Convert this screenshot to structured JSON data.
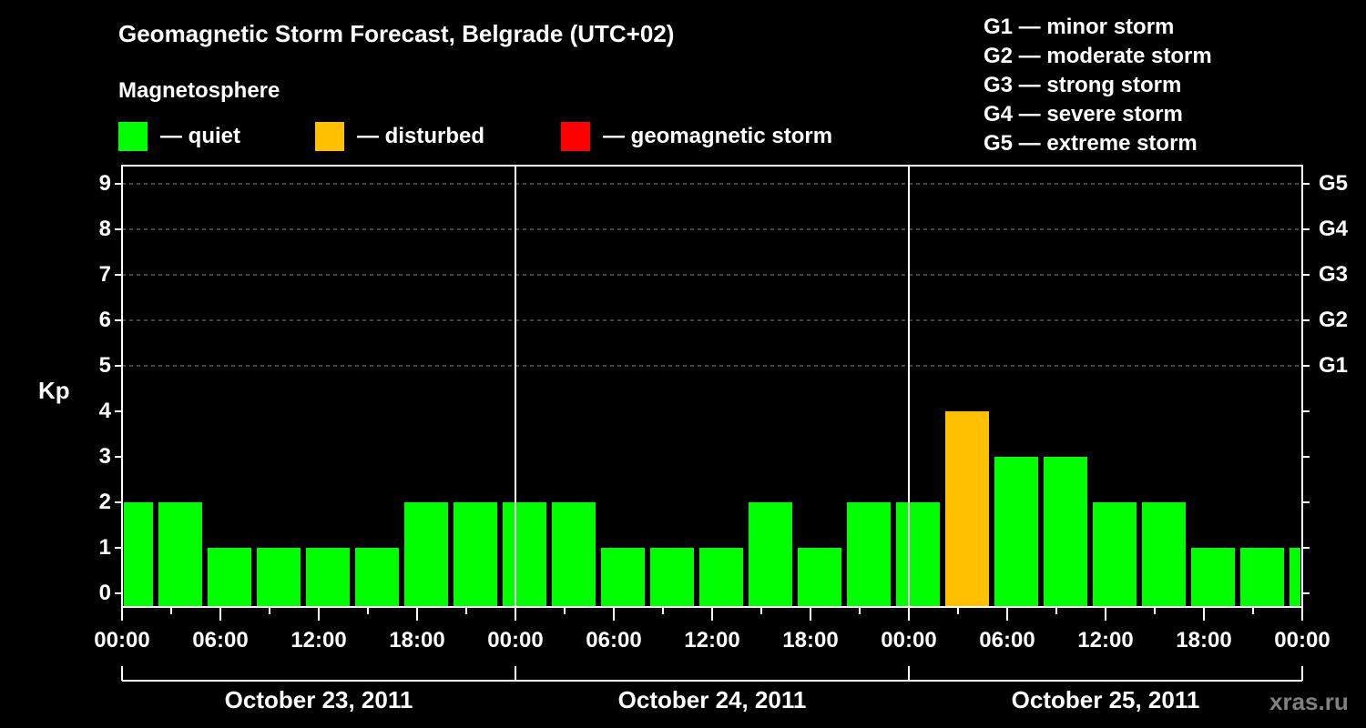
{
  "header": {
    "title": "Geomagnetic Storm Forecast, Belgrade (UTC+02)",
    "subtitle": "Magnetosphere"
  },
  "legend": [
    {
      "label": "— quiet",
      "color": "#00ff00"
    },
    {
      "label": "— disturbed",
      "color": "#ffc000"
    },
    {
      "label": "— geomagnetic storm",
      "color": "#ff0000"
    }
  ],
  "g_legend": [
    "G1 — minor storm",
    "G2 — moderate storm",
    "G3 — strong storm",
    "G4 — severe storm",
    "G5 — extreme storm"
  ],
  "watermark": "xras.ru",
  "chart_data": {
    "type": "bar",
    "title": "Geomagnetic Storm Forecast, Belgrade (UTC+02)",
    "ylabel": "Kp",
    "xlabel": "",
    "ylim": [
      0,
      9
    ],
    "yticks": [
      0,
      1,
      2,
      3,
      4,
      5,
      6,
      7,
      8,
      9
    ],
    "right_axis_labels": [
      {
        "kp": 5,
        "label": "G1"
      },
      {
        "kp": 6,
        "label": "G2"
      },
      {
        "kp": 7,
        "label": "G3"
      },
      {
        "kp": 8,
        "label": "G4"
      },
      {
        "kp": 9,
        "label": "G5"
      }
    ],
    "xtick_labels": [
      "00:00",
      "06:00",
      "12:00",
      "18:00",
      "00:00",
      "06:00",
      "12:00",
      "18:00",
      "00:00",
      "06:00",
      "12:00",
      "18:00",
      "00:00"
    ],
    "dates": [
      "October 23, 2011",
      "October 24, 2011",
      "October 25, 2011"
    ],
    "interval_hours": 3,
    "categories": [
      "Oct 23 00:00",
      "Oct 23 03:00",
      "Oct 23 06:00",
      "Oct 23 09:00",
      "Oct 23 12:00",
      "Oct 23 15:00",
      "Oct 23 18:00",
      "Oct 23 21:00",
      "Oct 24 00:00",
      "Oct 24 03:00",
      "Oct 24 06:00",
      "Oct 24 09:00",
      "Oct 24 12:00",
      "Oct 24 15:00",
      "Oct 24 18:00",
      "Oct 24 21:00",
      "Oct 25 00:00",
      "Oct 25 03:00",
      "Oct 25 06:00",
      "Oct 25 09:00",
      "Oct 25 12:00",
      "Oct 25 15:00",
      "Oct 25 18:00",
      "Oct 25 21:00",
      "Oct 26 00:00"
    ],
    "values": [
      2,
      2,
      1,
      1,
      1,
      1,
      2,
      2,
      2,
      2,
      1,
      1,
      1,
      2,
      1,
      2,
      2,
      4,
      3,
      3,
      2,
      2,
      1,
      1,
      1
    ],
    "status": [
      "quiet",
      "quiet",
      "quiet",
      "quiet",
      "quiet",
      "quiet",
      "quiet",
      "quiet",
      "quiet",
      "quiet",
      "quiet",
      "quiet",
      "quiet",
      "quiet",
      "quiet",
      "quiet",
      "quiet",
      "disturbed",
      "quiet",
      "quiet",
      "quiet",
      "quiet",
      "quiet",
      "quiet",
      "quiet"
    ],
    "colors": {
      "quiet": "#00ff00",
      "disturbed": "#ffc000",
      "storm": "#ff0000"
    },
    "grid": true
  }
}
